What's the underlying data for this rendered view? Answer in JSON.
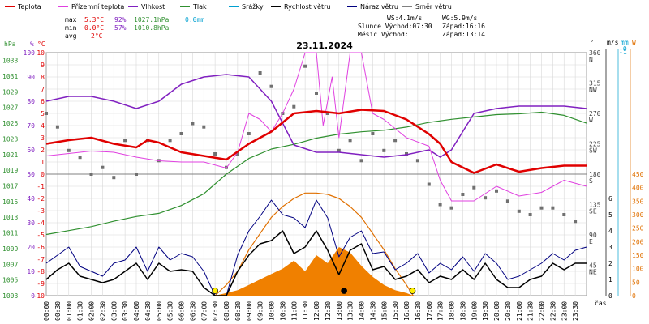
{
  "chart_data": {
    "type": "line",
    "title": "23.11.2024",
    "legend": [
      {
        "name": "Teplota",
        "color": "#e00000"
      },
      {
        "name": "Přízemní teplota",
        "color": "#e040e0"
      },
      {
        "name": "Vlhkost",
        "color": "#8020c0"
      },
      {
        "name": "Tlak",
        "color": "#309030"
      },
      {
        "name": "Srážky",
        "color": "#00a0d0"
      },
      {
        "name": "Rychlost větru",
        "color": "#000000"
      },
      {
        "name": "Náraz větru",
        "color": "#000080"
      },
      {
        "name": "Směr větru",
        "color": "#808080"
      }
    ],
    "stats": {
      "max_label": "max",
      "max_temp": "5.3°C",
      "max_hum": "92%",
      "max_press": "1027.1hPa",
      "max_rain": "0.0mm",
      "min_label": "min",
      "min_temp": "0.0°C",
      "min_hum": "57%",
      "min_press": "1010.8hPa",
      "avg_label": "avg",
      "avg_temp": "2°C",
      "ws": "WS:4.1m/s",
      "wg": "WG:5.9m/s",
      "sunrise": "Slunce Východ:07:30",
      "sunset": "Západ:16:16",
      "moonrise": "Měsíc  Východ:",
      "moonset": "Západ:13:14"
    },
    "axes": {
      "hpa_label": "hPa",
      "pct_label": "%",
      "c_label": "°C",
      "hpa_ticks": [
        "1003",
        "1005",
        "1007",
        "1009",
        "1011",
        "1013",
        "1015",
        "1017",
        "1019",
        "1021",
        "1023",
        "1025",
        "1027",
        "1029",
        "1031",
        "1033"
      ],
      "pct_ticks": [
        "0",
        "5",
        "10",
        "15",
        "20",
        "25",
        "30",
        "35",
        "40",
        "45",
        "50",
        "55",
        "60",
        "65",
        "70",
        "75",
        "80",
        "85",
        "90",
        "95",
        "100"
      ],
      "c_ticks": [
        "-10",
        "-9",
        "-8",
        "-7",
        "-6",
        "-5",
        "-4",
        "-3",
        "-2",
        "-1",
        "0",
        "1",
        "2",
        "3",
        "4",
        "5",
        "6",
        "7",
        "8",
        "9",
        "10"
      ],
      "deg_label": "°",
      "dir_ticks": [
        "0",
        "45",
        "90",
        "135",
        "180",
        "225",
        "270",
        "315",
        "360"
      ],
      "dir_names": [
        "N",
        "NE",
        "E",
        "SE",
        "S",
        "SW",
        "W",
        "NW",
        "N"
      ],
      "ms_label": "m/s",
      "mm_label": "mm",
      "w_label": "W",
      "ms_ticks": [
        "0",
        "1",
        "2",
        "3",
        "4",
        "5",
        "6"
      ],
      "mm_ticks": [
        "-0",
        "-1"
      ],
      "w_ticks": [
        "0",
        "50",
        "100",
        "150",
        "200",
        "250",
        "300",
        "350",
        "400",
        "450"
      ],
      "x_label": "čas",
      "x_ticks": [
        "00:00",
        "00:30",
        "01:00",
        "01:30",
        "02:00",
        "02:30",
        "03:00",
        "03:30",
        "04:00",
        "04:30",
        "05:00",
        "05:30",
        "06:00",
        "06:30",
        "07:00",
        "07:30",
        "08:00",
        "08:30",
        "09:00",
        "09:30",
        "10:00",
        "10:30",
        "11:00",
        "11:30",
        "12:00",
        "12:30",
        "13:00",
        "13:30",
        "14:00",
        "14:30",
        "15:00",
        "15:30",
        "16:00",
        "16:30",
        "17:00",
        "17:30",
        "18:00",
        "18:30",
        "19:00",
        "19:30",
        "20:00",
        "20:30",
        "21:00",
        "21:30",
        "22:00",
        "22:30",
        "23:00",
        "23:30"
      ]
    },
    "series": [
      {
        "name": "Teplota",
        "unit": "°C",
        "x": [
          0,
          1,
          2,
          3,
          4,
          4.5,
          5,
          6,
          7,
          8,
          9,
          10,
          11,
          12,
          13,
          14,
          15,
          16,
          17,
          17.5,
          18,
          19,
          20,
          21,
          22,
          23,
          24
        ],
        "values": [
          2.5,
          2.8,
          3.0,
          2.5,
          2.2,
          2.8,
          2.6,
          1.8,
          1.5,
          1.2,
          2.5,
          3.5,
          5.0,
          5.2,
          5.0,
          5.3,
          5.2,
          4.5,
          3.3,
          2.5,
          1.0,
          0.1,
          0.8,
          0.2,
          0.5,
          0.7,
          0.7
        ]
      },
      {
        "name": "Přízemní teplota",
        "unit": "°C",
        "x": [
          0,
          1,
          2,
          3,
          4,
          5,
          6,
          7,
          8,
          8.5,
          9,
          9.5,
          10,
          10.5,
          11,
          11.5,
          12,
          12.3,
          12.7,
          13,
          13.5,
          14,
          14.5,
          15,
          16,
          17,
          17.5,
          18,
          19,
          20,
          21,
          22,
          23,
          24
        ],
        "values": [
          1.5,
          1.7,
          1.9,
          1.8,
          1.4,
          1.1,
          1.0,
          1.0,
          0.5,
          1.8,
          5.0,
          4.5,
          3.5,
          5.0,
          7.0,
          10.0,
          10.0,
          4.0,
          8.0,
          3.0,
          10.0,
          10.0,
          5.0,
          4.5,
          3.0,
          2.3,
          -0.5,
          -2.2,
          -2.2,
          -1.0,
          -1.8,
          -1.5,
          -0.5,
          -1.0
        ]
      },
      {
        "name": "Vlhkost",
        "unit": "%",
        "x": [
          0,
          1,
          2,
          3,
          4,
          5,
          6,
          7,
          8,
          9,
          10,
          11,
          12,
          13,
          14,
          15,
          16,
          17,
          17.5,
          18,
          19,
          20,
          21,
          22,
          23,
          24
        ],
        "values": [
          80,
          82,
          82,
          80,
          77,
          80,
          87,
          90,
          91,
          90,
          80,
          62,
          59,
          59,
          58,
          57,
          58,
          60,
          57,
          60,
          75,
          77,
          78,
          78,
          78,
          77
        ]
      },
      {
        "name": "Tlak",
        "unit": "hPa",
        "x": [
          0,
          1,
          2,
          3,
          4,
          5,
          6,
          7,
          8,
          9,
          10,
          11,
          12,
          13,
          14,
          15,
          16,
          17,
          18,
          19,
          20,
          21,
          22,
          23,
          24
        ],
        "values": [
          1010.8,
          1011.3,
          1011.8,
          1012.5,
          1013.1,
          1013.5,
          1014.5,
          1016.0,
          1018.5,
          1020.5,
          1021.7,
          1022.3,
          1023.1,
          1023.6,
          1023.9,
          1024.1,
          1024.5,
          1025.1,
          1025.5,
          1025.8,
          1026.1,
          1026.2,
          1026.4,
          1026.0,
          1025.0
        ]
      },
      {
        "name": "Rychlost větru",
        "unit": "m/s",
        "x": [
          0,
          0.5,
          1,
          1.5,
          2,
          2.5,
          3,
          3.5,
          4,
          4.5,
          5,
          5.5,
          6,
          6.5,
          7,
          7.5,
          8,
          8.5,
          9,
          9.5,
          10,
          10.5,
          11,
          11.5,
          12,
          12.5,
          13,
          13.5,
          14,
          14.5,
          15,
          15.5,
          16,
          16.5,
          17,
          17.5,
          18,
          18.5,
          19,
          19.5,
          20,
          20.5,
          21,
          21.5,
          22,
          22.5,
          23,
          23.5,
          24
        ],
        "values": [
          1.0,
          1.6,
          2.0,
          1.2,
          1.0,
          0.8,
          1.0,
          1.5,
          2.0,
          1.0,
          2.0,
          1.5,
          1.6,
          1.5,
          0.5,
          0,
          0,
          1.5,
          2.5,
          3.2,
          3.4,
          4.0,
          2.6,
          3.0,
          4.0,
          2.8,
          1.3,
          2.8,
          3.2,
          1.6,
          1.8,
          1.0,
          1.2,
          1.6,
          0.8,
          1.2,
          1.0,
          1.6,
          1.0,
          2.0,
          1.0,
          0.5,
          0.5,
          1.0,
          1.2,
          2.0,
          1.6,
          2.0,
          2.0
        ]
      },
      {
        "name": "Náraz větru",
        "unit": "m/s",
        "x": [
          0,
          0.5,
          1,
          1.5,
          2,
          2.5,
          3,
          3.5,
          4,
          4.5,
          5,
          5.5,
          6,
          6.5,
          7,
          7.5,
          8,
          8.5,
          9,
          9.5,
          10,
          10.5,
          11,
          11.5,
          12,
          12.5,
          13,
          13.5,
          14,
          14.5,
          15,
          15.5,
          16,
          16.5,
          17,
          17.5,
          18,
          18.5,
          19,
          19.5,
          20,
          20.5,
          21,
          21.5,
          22,
          22.5,
          23,
          23.5,
          24
        ],
        "values": [
          2.0,
          2.5,
          3.0,
          1.8,
          1.5,
          1.2,
          2.0,
          2.2,
          3.0,
          1.5,
          3.0,
          2.2,
          2.6,
          2.4,
          1.5,
          0,
          0,
          2.5,
          4.0,
          4.9,
          5.9,
          5.0,
          4.8,
          4.2,
          5.9,
          4.8,
          2.4,
          3.6,
          4.0,
          2.6,
          2.7,
          1.6,
          2.0,
          2.6,
          1.4,
          2.0,
          1.6,
          2.4,
          1.5,
          2.6,
          2.0,
          1.0,
          1.2,
          1.6,
          2.0,
          2.6,
          2.2,
          2.8,
          3.0
        ]
      },
      {
        "name": "Směr větru",
        "unit": "°",
        "x": [
          0,
          0.5,
          1,
          1.5,
          2,
          2.5,
          3,
          3.5,
          4,
          4.5,
          5,
          5.5,
          6,
          6.5,
          7,
          7.5,
          8,
          8.5,
          9,
          9.5,
          10,
          10.5,
          11,
          11.5,
          12,
          12.5,
          13,
          13.5,
          14,
          14.5,
          15,
          15.5,
          16,
          16.5,
          17,
          17.5,
          18,
          18.5,
          19,
          19.5,
          20,
          20.5,
          21,
          21.5,
          22,
          22.5,
          23,
          23.5
        ],
        "values": [
          270,
          250,
          215,
          205,
          180,
          190,
          175,
          230,
          180,
          230,
          200,
          230,
          240,
          255,
          250,
          210,
          190,
          210,
          240,
          330,
          310,
          270,
          280,
          340,
          300,
          270,
          215,
          230,
          200,
          240,
          215,
          230,
          210,
          200,
          165,
          135,
          130,
          150,
          160,
          145,
          155,
          140,
          125,
          120,
          130,
          130,
          120,
          110
        ]
      },
      {
        "name": "Solar",
        "unit": "W",
        "x": [
          7.5,
          8,
          8.5,
          9,
          9.5,
          10,
          10.5,
          11,
          11.5,
          12,
          12.5,
          13,
          13.5,
          14,
          14.5,
          15,
          15.5,
          16,
          16.3
        ],
        "values": [
          0,
          10,
          20,
          40,
          60,
          80,
          100,
          130,
          90,
          150,
          120,
          180,
          160,
          110,
          70,
          40,
          20,
          10,
          0
        ]
      },
      {
        "name": "Solar max",
        "unit": "W",
        "x": [
          7.5,
          8,
          8.5,
          9,
          9.5,
          10,
          10.5,
          11,
          11.5,
          12,
          12.5,
          13,
          13.5,
          14,
          14.5,
          15,
          15.5,
          16,
          16.3
        ],
        "values": [
          0,
          40,
          90,
          170,
          230,
          290,
          330,
          360,
          380,
          380,
          375,
          360,
          330,
          290,
          230,
          170,
          100,
          40,
          0
        ]
      }
    ],
    "markers": {
      "sunrise_hour": 7.5,
      "sunset_hour": 16.27,
      "moonset_hour": 13.23
    },
    "ylim_temp": [
      -10,
      10
    ],
    "ylim_wind": [
      0,
      6
    ],
    "ylim_solar": [
      0,
      450
    ],
    "ylim_dir": [
      0,
      360
    ],
    "xlim_hours": [
      0,
      24
    ],
    "grid": true
  }
}
